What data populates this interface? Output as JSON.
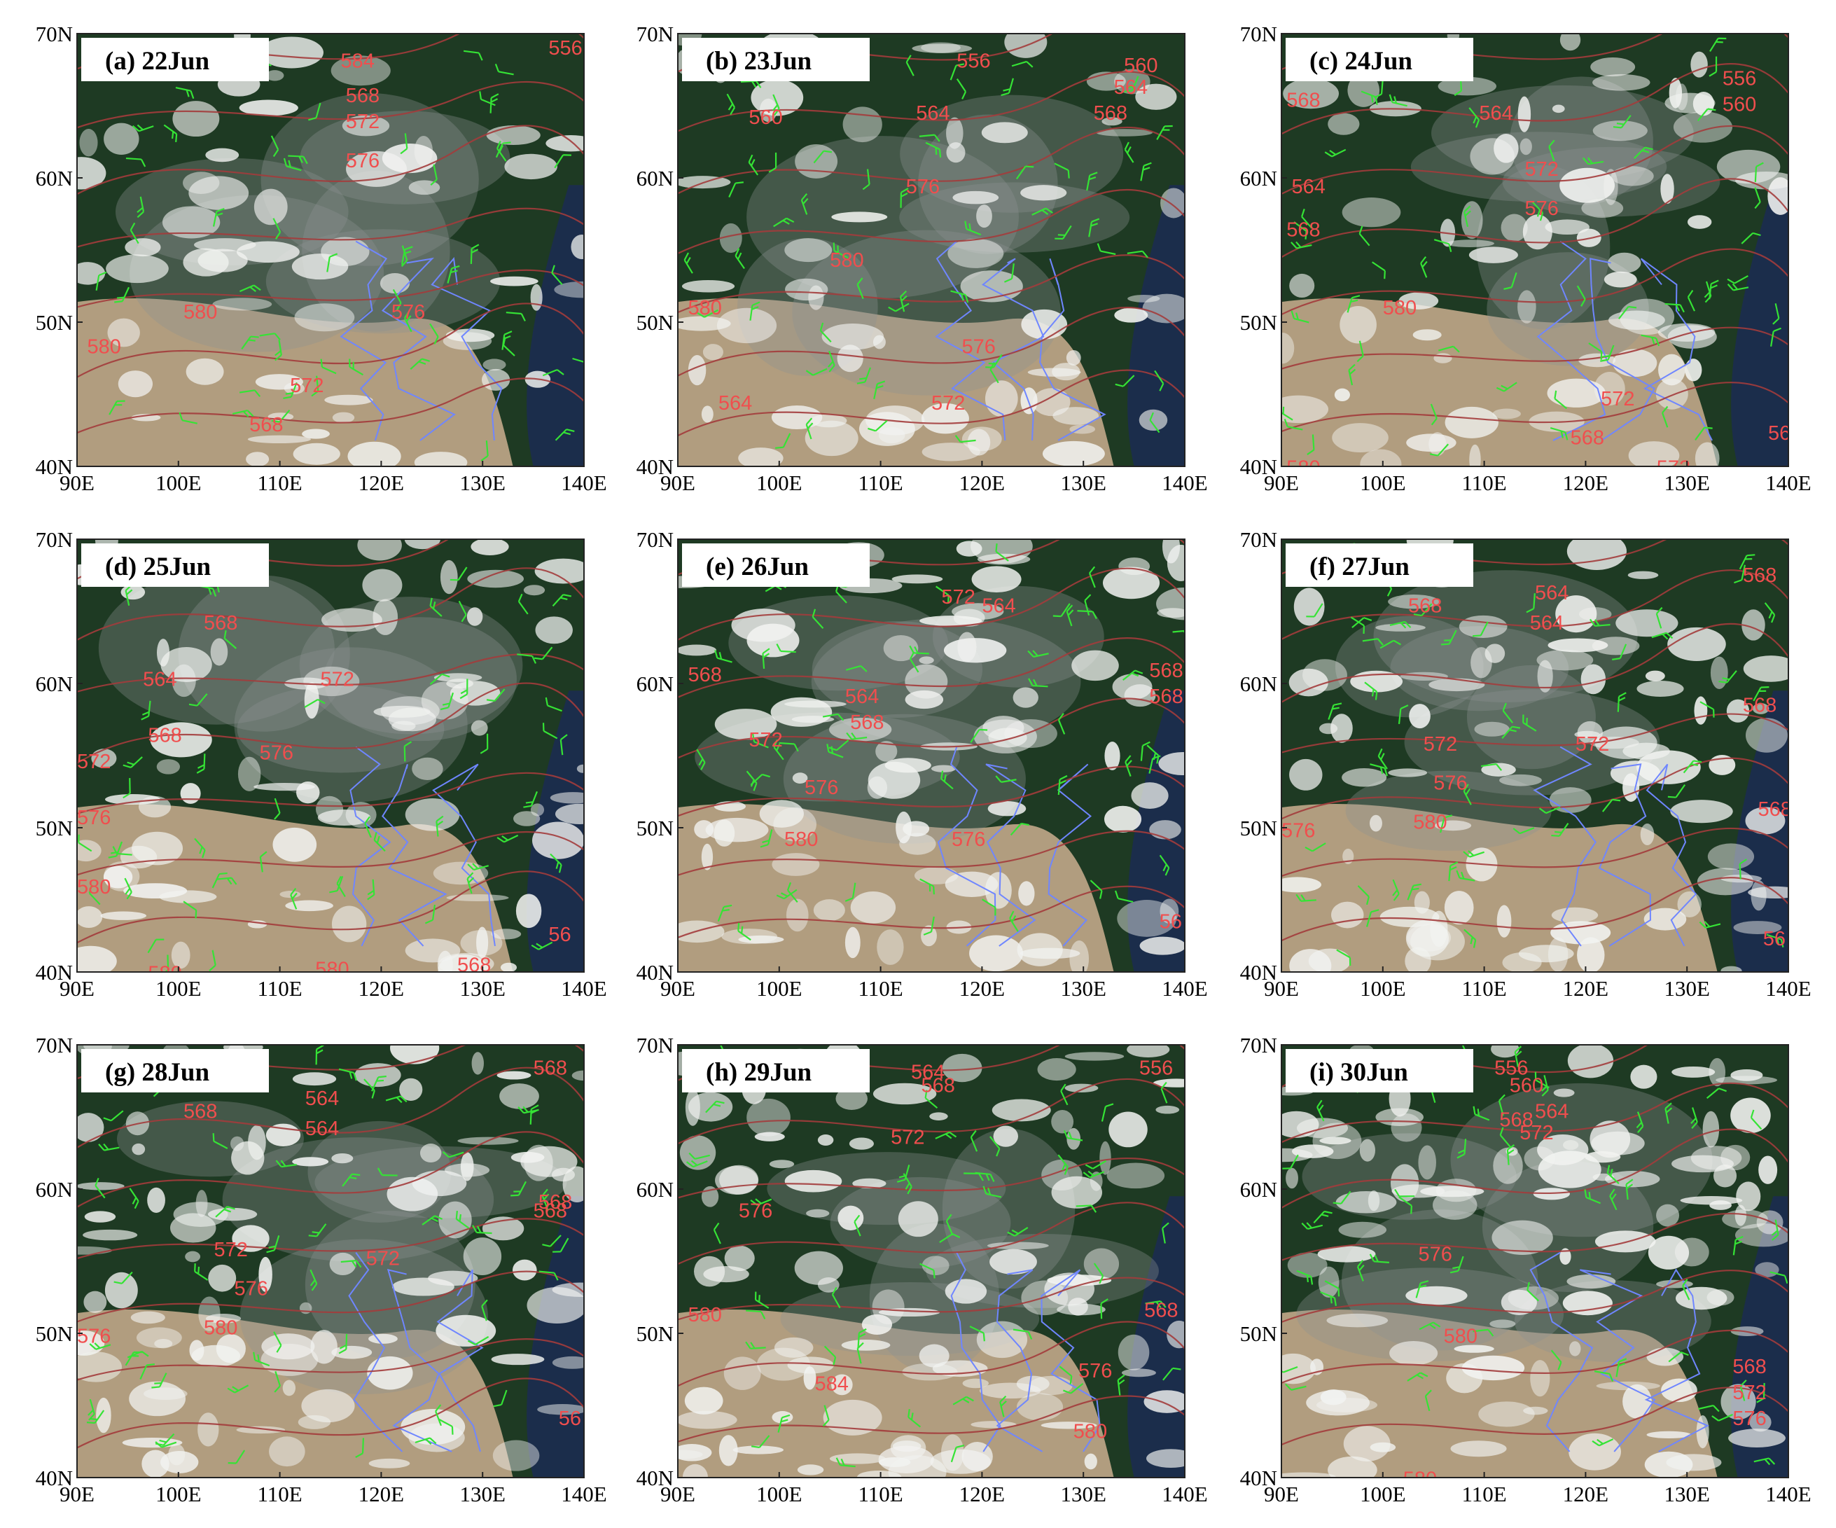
{
  "figure": {
    "x_ticks": [
      "90E",
      "100E",
      "110E",
      "120E",
      "130E",
      "140E"
    ],
    "y_ticks": [
      "40N",
      "50N",
      "60N",
      "70N"
    ],
    "colors": {
      "forest": "#1e3a23",
      "cloud": "#f2f3f1",
      "desert": "#b9a285",
      "smoke": "#8b9393",
      "contour": "#a33c3c",
      "contour_label": "#f04e4e",
      "wind_barb": "#35e335",
      "boundary": "#6f86ff",
      "ocean": "#1b2c52"
    },
    "panels": [
      {
        "id": "a",
        "label": "(a) 22Jun",
        "contour_labels": [
          "584",
          "568",
          "572",
          "576",
          "580",
          "580",
          "576",
          "572",
          "568",
          "556"
        ]
      },
      {
        "id": "b",
        "label": "(b) 23Jun",
        "contour_labels": [
          "556",
          "560",
          "564",
          "568",
          "564",
          "560",
          "576",
          "580",
          "580",
          "576",
          "572",
          "564"
        ]
      },
      {
        "id": "c",
        "label": "(c) 24Jun",
        "contour_labels": [
          "568",
          "564",
          "572",
          "576",
          "580",
          "564",
          "568",
          "560",
          "556",
          "572",
          "568",
          "580",
          "572",
          "56"
        ]
      },
      {
        "id": "d",
        "label": "(d) 25Jun",
        "contour_labels": [
          "580",
          "568",
          "564",
          "572",
          "568",
          "572",
          "576",
          "576",
          "580",
          "580",
          "568",
          "56"
        ]
      },
      {
        "id": "e",
        "label": "(e) 26Jun",
        "contour_labels": [
          "568",
          "564",
          "572",
          "568",
          "564",
          "568",
          "572",
          "576",
          "580",
          "576",
          "568",
          "56"
        ]
      },
      {
        "id": "f",
        "label": "(f) 27Jun",
        "contour_labels": [
          "568",
          "564",
          "564",
          "568",
          "568",
          "572",
          "572",
          "576",
          "576",
          "580",
          "568",
          "56"
        ]
      },
      {
        "id": "g",
        "label": "(g) 28Jun",
        "contour_labels": [
          "568",
          "564",
          "564",
          "568",
          "568",
          "572",
          "572",
          "576",
          "576",
          "580",
          "568",
          "56"
        ]
      },
      {
        "id": "h",
        "label": "(h) 29Jun",
        "contour_labels": [
          "564",
          "568",
          "572",
          "576",
          "580",
          "584",
          "576",
          "580",
          "568",
          "556"
        ]
      },
      {
        "id": "i",
        "label": "(i) 30Jun",
        "contour_labels": [
          "556",
          "560",
          "564",
          "568",
          "572",
          "576",
          "580",
          "568",
          "572",
          "576",
          "580"
        ]
      }
    ]
  }
}
